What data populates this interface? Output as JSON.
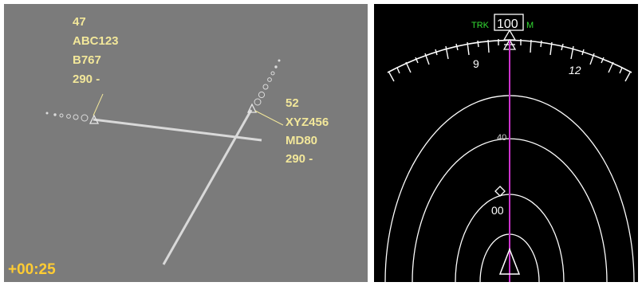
{
  "radar": {
    "aircraft": [
      {
        "altitude_code": "47",
        "callsign": "ABC123",
        "type": "B767",
        "flight_level": "290 -"
      },
      {
        "altitude_code": "52",
        "callsign": "XYZ456",
        "type": "MD80",
        "flight_level": "290 -"
      }
    ],
    "timer": "+00:25",
    "colors": {
      "background": "#7b7b7b",
      "label": "#f2e79a",
      "timer": "#ffcc33",
      "track": "#d8d8d8"
    }
  },
  "nav_display": {
    "mode_label": "TRK",
    "heading": "100",
    "heading_ref": "M",
    "scale_labels": [
      "9",
      "12"
    ],
    "range_label": "40",
    "waypoint_label": "00",
    "colors": {
      "background": "#000000",
      "track_line": "#cc33cc",
      "mode": "#33dd33"
    }
  }
}
